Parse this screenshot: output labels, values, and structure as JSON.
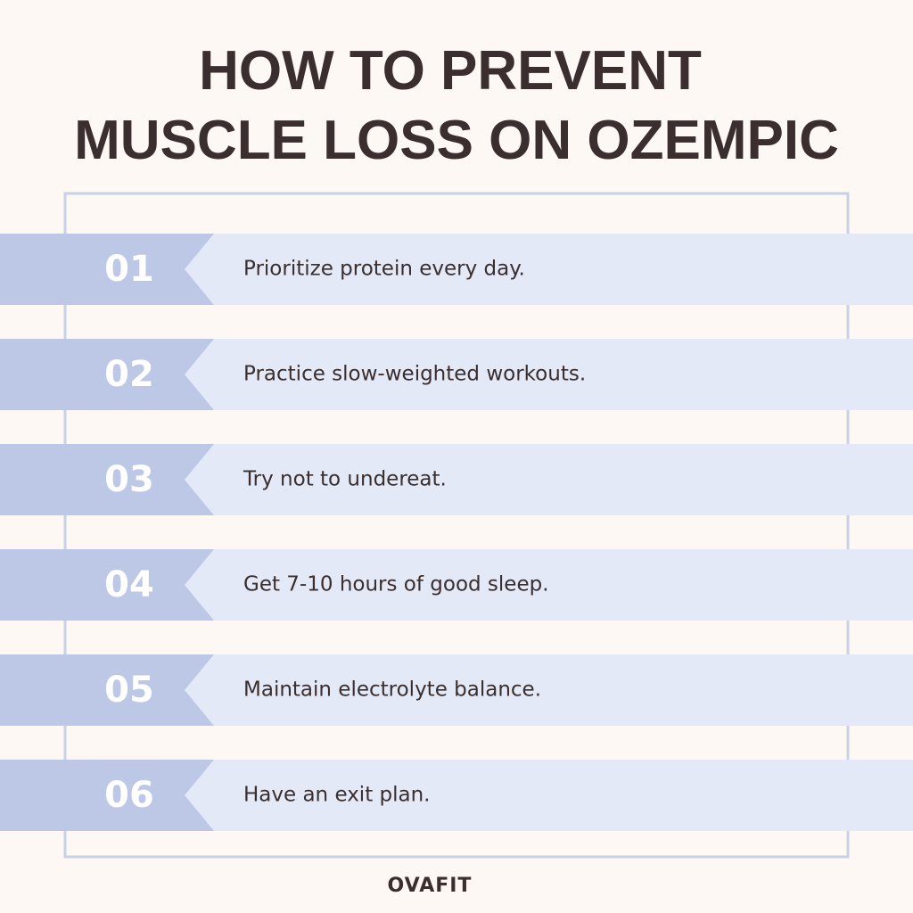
{
  "header": {
    "title": [
      "HOW TO PREVENT",
      "MUSCLE LOSS ON OZEMPIC"
    ]
  },
  "items": [
    {
      "number": "01",
      "text": "Prioritize protein every day."
    },
    {
      "number": "02",
      "text": "Practice slow-weighted workouts."
    },
    {
      "number": "03",
      "text": "Try not to undereat."
    },
    {
      "number": "04",
      "text": "Get 7-10 hours of good sleep."
    },
    {
      "number": "05",
      "text": "Maintain electrolyte balance."
    },
    {
      "number": "06",
      "text": "Have an exit plan."
    }
  ],
  "footer": {
    "brand": "OVAFIT"
  }
}
